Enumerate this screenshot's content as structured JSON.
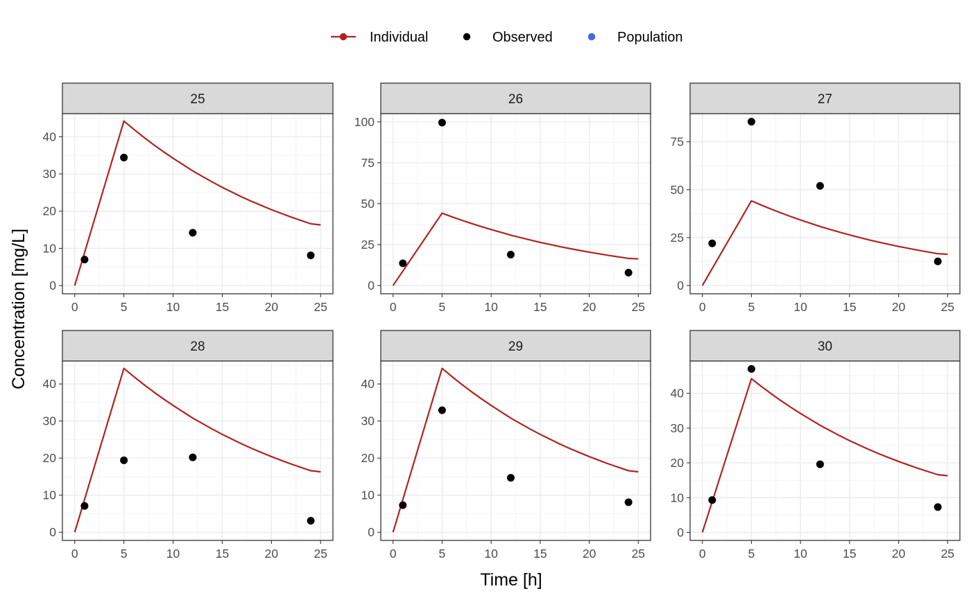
{
  "chart_data": {
    "type": "line",
    "x_title": "Time [h]",
    "y_title": "Concentration [mg/L]",
    "legend": {
      "position": "top",
      "items": [
        {
          "label": "Individual",
          "kind": "line-point",
          "color": "#b22222"
        },
        {
          "label": "Observed",
          "kind": "point",
          "color": "#000000"
        },
        {
          "label": "Population",
          "kind": "point",
          "color": "#4169e1"
        }
      ]
    },
    "grid": true,
    "x_range": [
      -1.25,
      26.25
    ],
    "x_ticks": [
      0,
      5,
      10,
      15,
      20,
      25
    ],
    "individual_curve": {
      "x": [
        0,
        1,
        2,
        3,
        4,
        5,
        6,
        7,
        8,
        9,
        10,
        11,
        12,
        13,
        14,
        15,
        16,
        17,
        18,
        19,
        20,
        21,
        22,
        23,
        24,
        25
      ],
      "y": [
        0,
        8.8,
        17.6,
        26.4,
        35.2,
        44.0,
        41.6,
        39.4,
        37.3,
        35.3,
        33.4,
        31.6,
        29.9,
        28.3,
        26.8,
        25.4,
        24.0,
        22.7,
        21.5,
        20.4,
        19.3,
        18.2,
        17.3,
        16.4,
        15.5,
        14.7
      ]
    },
    "panels": [
      {
        "id": "25",
        "y_range": [
          -2.2,
          46.2
        ],
        "y_ticks": [
          0,
          10,
          20,
          30,
          40
        ],
        "individual": {
          "x": [
            0,
            1,
            2,
            3,
            4,
            5,
            6,
            7,
            8,
            9,
            10,
            11,
            12,
            13,
            14,
            15,
            16,
            17,
            18,
            19,
            20,
            21,
            22,
            23,
            24,
            25
          ],
          "y": [
            0,
            8.84,
            17.68,
            26.52,
            35.36,
            44.2,
            42.0,
            39.9,
            37.9,
            36.0,
            34.2,
            32.5,
            30.8,
            29.3,
            27.8,
            26.4,
            25.1,
            23.8,
            22.6,
            21.5,
            20.4,
            19.4,
            18.4,
            17.5,
            16.6,
            16.3
          ]
        },
        "observed": {
          "x": [
            1,
            5,
            12,
            24
          ],
          "y": [
            7.0,
            34.4,
            14.2,
            8.1
          ]
        }
      },
      {
        "id": "26",
        "y_range": [
          -5.0,
          105.0
        ],
        "y_ticks": [
          0,
          25,
          50,
          75,
          100
        ],
        "individual": {
          "x": [
            0,
            1,
            2,
            3,
            4,
            5,
            6,
            7,
            8,
            9,
            10,
            11,
            12,
            13,
            14,
            15,
            16,
            17,
            18,
            19,
            20,
            21,
            22,
            23,
            24,
            25
          ],
          "y": [
            0,
            8.84,
            17.68,
            26.52,
            35.36,
            44.2,
            42.0,
            39.9,
            37.9,
            36.0,
            34.2,
            32.5,
            30.8,
            29.3,
            27.8,
            26.4,
            25.1,
            23.8,
            22.6,
            21.5,
            20.4,
            19.4,
            18.4,
            17.5,
            16.6,
            16.3
          ]
        },
        "observed": {
          "x": [
            1,
            5,
            12,
            24
          ],
          "y": [
            13.6,
            99.5,
            18.9,
            7.9
          ]
        }
      },
      {
        "id": "27",
        "y_range": [
          -4.3,
          89.7
        ],
        "y_ticks": [
          0,
          25,
          50,
          75
        ],
        "individual": {
          "x": [
            0,
            1,
            2,
            3,
            4,
            5,
            6,
            7,
            8,
            9,
            10,
            11,
            12,
            13,
            14,
            15,
            16,
            17,
            18,
            19,
            20,
            21,
            22,
            23,
            24,
            25
          ],
          "y": [
            0,
            8.84,
            17.68,
            26.52,
            35.36,
            44.2,
            42.0,
            39.9,
            37.9,
            36.0,
            34.2,
            32.5,
            30.8,
            29.3,
            27.8,
            26.4,
            25.1,
            23.8,
            22.6,
            21.5,
            20.4,
            19.4,
            18.4,
            17.5,
            16.6,
            16.3
          ]
        },
        "observed": {
          "x": [
            1,
            5,
            12,
            24
          ],
          "y": [
            22.0,
            85.5,
            52.0,
            12.6
          ]
        }
      },
      {
        "id": "28",
        "y_range": [
          -2.2,
          46.2
        ],
        "y_ticks": [
          0,
          10,
          20,
          30,
          40
        ],
        "individual": {
          "x": [
            0,
            1,
            2,
            3,
            4,
            5,
            6,
            7,
            8,
            9,
            10,
            11,
            12,
            13,
            14,
            15,
            16,
            17,
            18,
            19,
            20,
            21,
            22,
            23,
            24,
            25
          ],
          "y": [
            0,
            8.84,
            17.68,
            26.52,
            35.36,
            44.2,
            42.0,
            39.9,
            37.9,
            36.0,
            34.2,
            32.5,
            30.8,
            29.3,
            27.8,
            26.4,
            25.1,
            23.8,
            22.6,
            21.5,
            20.4,
            19.4,
            18.4,
            17.5,
            16.6,
            16.3
          ]
        },
        "observed": {
          "x": [
            1,
            5,
            12,
            24
          ],
          "y": [
            7.1,
            19.4,
            20.2,
            3.1
          ]
        }
      },
      {
        "id": "29",
        "y_range": [
          -2.2,
          46.2
        ],
        "y_ticks": [
          0,
          10,
          20,
          30,
          40
        ],
        "individual": {
          "x": [
            0,
            1,
            2,
            3,
            4,
            5,
            6,
            7,
            8,
            9,
            10,
            11,
            12,
            13,
            14,
            15,
            16,
            17,
            18,
            19,
            20,
            21,
            22,
            23,
            24,
            25
          ],
          "y": [
            0,
            8.84,
            17.68,
            26.52,
            35.36,
            44.2,
            42.0,
            39.9,
            37.9,
            36.0,
            34.2,
            32.5,
            30.8,
            29.3,
            27.8,
            26.4,
            25.1,
            23.8,
            22.6,
            21.5,
            20.4,
            19.4,
            18.4,
            17.5,
            16.6,
            16.3
          ]
        },
        "observed": {
          "x": [
            1,
            5,
            12,
            24
          ],
          "y": [
            7.3,
            32.9,
            14.7,
            8.1
          ]
        }
      },
      {
        "id": "30",
        "y_range": [
          -2.3,
          49.3
        ],
        "y_ticks": [
          0,
          10,
          20,
          30,
          40
        ],
        "individual": {
          "x": [
            0,
            1,
            2,
            3,
            4,
            5,
            6,
            7,
            8,
            9,
            10,
            11,
            12,
            13,
            14,
            15,
            16,
            17,
            18,
            19,
            20,
            21,
            22,
            23,
            24,
            25
          ],
          "y": [
            0,
            8.84,
            17.68,
            26.52,
            35.36,
            44.2,
            42.0,
            39.9,
            37.9,
            36.0,
            34.2,
            32.5,
            30.8,
            29.3,
            27.8,
            26.4,
            25.1,
            23.8,
            22.6,
            21.5,
            20.4,
            19.4,
            18.4,
            17.5,
            16.6,
            16.3
          ]
        },
        "observed": {
          "x": [
            1,
            5,
            12,
            24
          ],
          "y": [
            9.3,
            47.0,
            19.6,
            7.3
          ]
        }
      }
    ]
  }
}
